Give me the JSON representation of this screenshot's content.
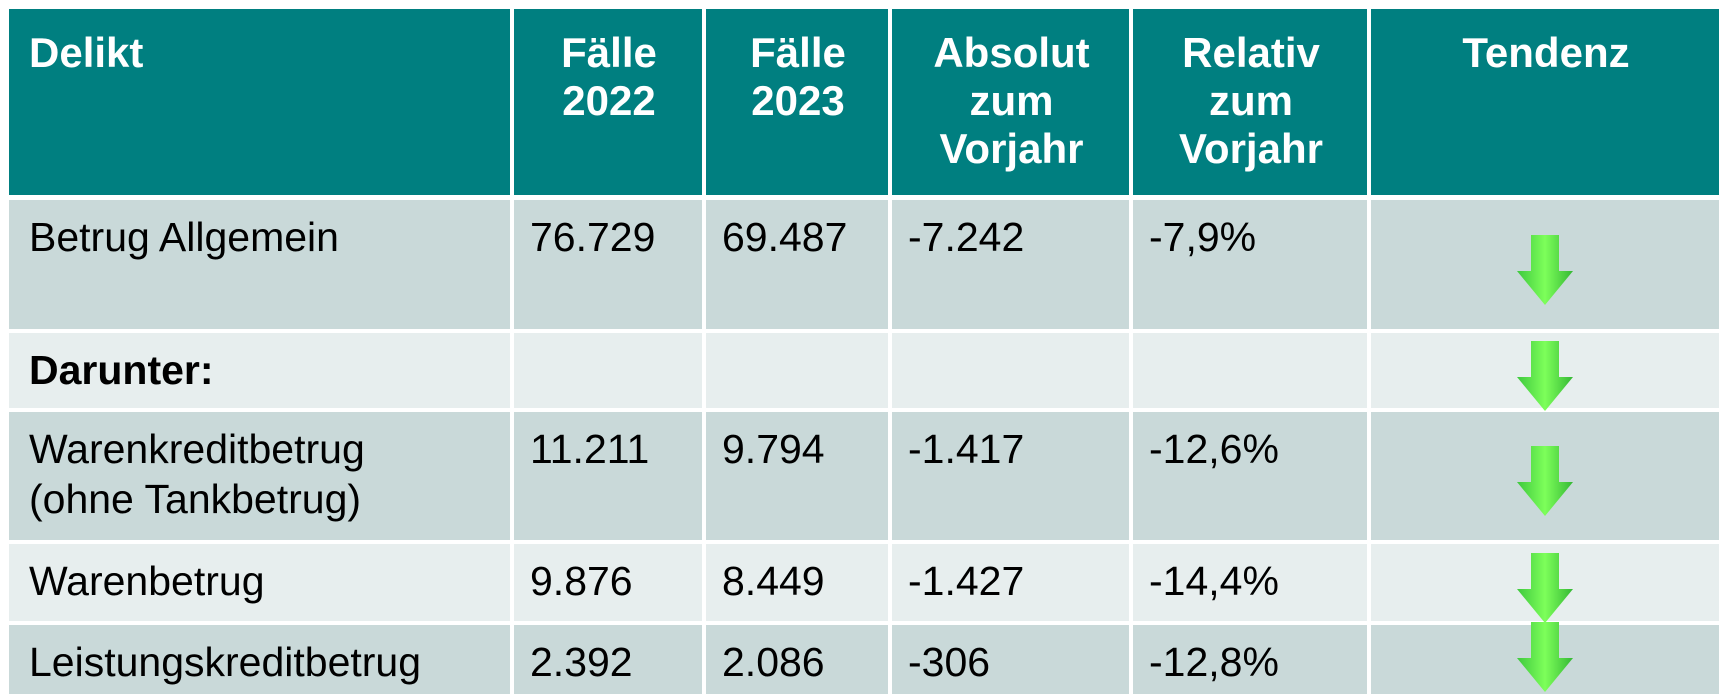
{
  "table": {
    "header": [
      [
        "Delikt"
      ],
      [
        "Fälle",
        "2022"
      ],
      [
        "Fälle",
        "2023"
      ],
      [
        "Absolut",
        "zum",
        "Vorjahr"
      ],
      [
        "Relativ",
        "zum",
        "Vorjahr"
      ],
      [
        "Tendenz"
      ]
    ],
    "rows": [
      {
        "delikt": [
          "Betrug Allgemein"
        ],
        "cells": [
          "76.729",
          "69.487",
          "-7.242",
          "-7,9%"
        ]
      },
      {
        "delikt": [
          "Darunter:"
        ]
      },
      {
        "delikt": [
          "Warenkreditbetrug",
          "(ohne Tankbetrug)"
        ],
        "cells": [
          "11.211",
          "9.794",
          "-1.417",
          "-12,6%"
        ]
      },
      {
        "delikt": [
          "Warenbetrug"
        ],
        "cells": [
          "9.876",
          "8.449",
          "-1.427",
          "-14,4%"
        ]
      },
      {
        "delikt": [
          "Leistungskreditbetrug"
        ],
        "cells": [
          "2.392",
          "2.086",
          "-306",
          "-12,8%"
        ]
      }
    ]
  }
}
